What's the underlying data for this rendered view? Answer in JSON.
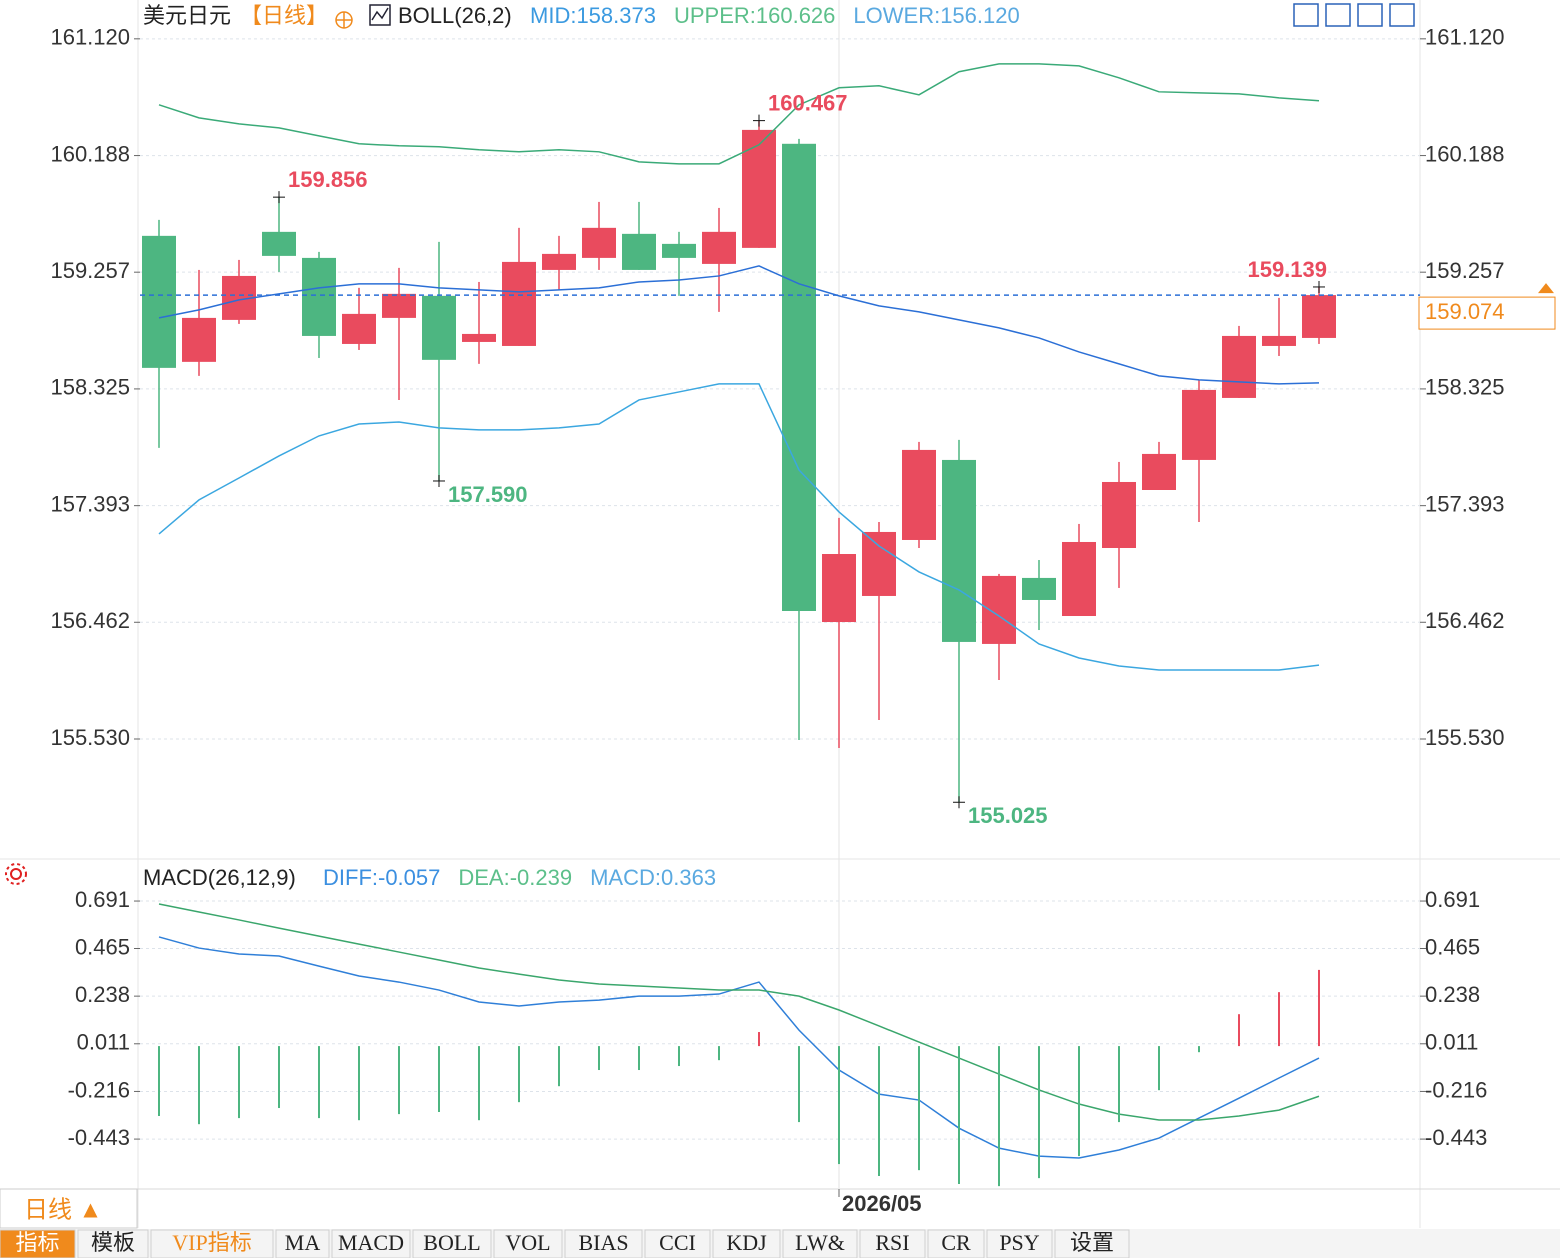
{
  "header": {
    "symbol": "美元日元",
    "period": "【日线】",
    "indicator": "BOLL(26,2)"
  },
  "chart_data": [
    {
      "type": "candlestick",
      "categories": [
        null,
        null,
        null,
        null,
        null,
        null,
        null,
        null,
        null,
        null,
        null,
        null,
        null,
        null,
        null,
        null,
        null,
        "2026/05",
        null,
        null,
        null,
        null,
        null,
        null,
        null,
        null,
        null,
        null,
        null,
        null
      ],
      "open": [
        159.547,
        158.541,
        158.876,
        159.579,
        159.371,
        158.684,
        158.892,
        159.068,
        158.7,
        158.668,
        159.275,
        159.371,
        159.563,
        159.483,
        159.323,
        159.451,
        160.282,
        156.464,
        156.672,
        157.119,
        157.758,
        156.289,
        156.816,
        156.512,
        157.055,
        157.518,
        157.758,
        158.253,
        158.668,
        158.732
      ],
      "high": [
        159.675,
        159.275,
        159.355,
        159.856,
        159.419,
        159.132,
        159.291,
        159.499,
        159.179,
        159.611,
        159.547,
        159.818,
        159.818,
        159.579,
        159.77,
        160.467,
        160.321,
        157.295,
        157.263,
        157.902,
        157.918,
        156.848,
        156.959,
        157.247,
        157.742,
        157.902,
        158.397,
        158.828,
        159.052,
        159.139
      ],
      "low": [
        157.854,
        158.429,
        158.844,
        159.259,
        158.572,
        158.636,
        158.237,
        157.59,
        158.525,
        158.668,
        159.116,
        159.275,
        159.275,
        159.068,
        158.94,
        159.451,
        155.522,
        155.458,
        155.682,
        157.055,
        155.025,
        156.001,
        156.4,
        156.512,
        156.736,
        157.518,
        157.263,
        158.253,
        158.588,
        158.684
      ],
      "close": [
        158.493,
        158.892,
        159.227,
        159.387,
        158.748,
        158.924,
        159.084,
        158.557,
        158.764,
        159.339,
        159.403,
        159.611,
        159.275,
        159.371,
        159.579,
        160.393,
        156.552,
        157.007,
        157.183,
        157.838,
        156.305,
        156.832,
        156.64,
        157.103,
        157.582,
        157.806,
        158.317,
        158.748,
        158.748,
        159.074
      ],
      "up_color": "#e94b5e",
      "down_color": "#4db681",
      "series": [
        {
          "legend": "MID:158.373",
          "color": "#2b6fd6",
          "text_color": "#3b9ae0",
          "values": [
            158.892,
            158.956,
            159.036,
            159.084,
            159.132,
            159.164,
            159.164,
            159.132,
            159.116,
            159.1,
            159.116,
            159.132,
            159.179,
            159.195,
            159.227,
            159.307,
            159.164,
            159.068,
            158.988,
            158.94,
            158.876,
            158.812,
            158.732,
            158.62,
            158.525,
            158.429,
            158.397,
            158.381,
            158.365,
            158.373
          ]
        },
        {
          "legend": "UPPER:160.626",
          "color": "#3aaa78",
          "text_color": "#5cbf8a",
          "values": [
            160.593,
            160.489,
            160.441,
            160.409,
            160.345,
            160.282,
            160.266,
            160.258,
            160.234,
            160.218,
            160.234,
            160.218,
            160.138,
            160.122,
            160.122,
            160.274,
            160.593,
            160.729,
            160.745,
            160.673,
            160.857,
            160.92,
            160.92,
            160.904,
            160.809,
            160.697,
            160.689,
            160.681,
            160.649,
            160.626
          ]
        },
        {
          "legend": "LOWER:156.120",
          "color": "#3ba7e0",
          "text_color": "#5aa9e0",
          "values": [
            157.167,
            157.439,
            157.614,
            157.79,
            157.95,
            158.045,
            158.061,
            158.014,
            157.998,
            157.998,
            158.014,
            158.045,
            158.237,
            158.301,
            158.365,
            158.365,
            157.678,
            157.343,
            157.071,
            156.864,
            156.72,
            156.512,
            156.289,
            156.177,
            156.113,
            156.081,
            156.081,
            156.081,
            156.081,
            156.12
          ]
        }
      ],
      "ylim": [
        154.58,
        161.43
      ],
      "yticks": [
        {
          "value": 161.12,
          "label": "161.120"
        },
        160.188,
        159.257,
        158.325,
        157.393,
        156.462,
        {
          "value": 155.53,
          "label": "155.530"
        }
      ],
      "current_price": 159.074,
      "annotations": [
        {
          "index": 3,
          "kind": "high",
          "value": 159.856
        },
        {
          "index": 15,
          "kind": "high",
          "value": 160.467
        },
        {
          "index": 7,
          "kind": "low",
          "value": 157.59,
          "label": "157.590"
        },
        {
          "index": 20,
          "kind": "low",
          "value": 155.025
        },
        {
          "index": 29,
          "kind": "high",
          "value": 159.139
        }
      ],
      "grid": true
    },
    {
      "type": "macd",
      "title": "MACD(26,12,9)",
      "series": [
        {
          "type": "line",
          "legend": "DIFF:-0.057",
          "color": "#2f7fd8",
          "text_color": "#3b8fe0",
          "values": [
            0.52,
            0.467,
            0.439,
            0.429,
            0.381,
            0.334,
            0.305,
            0.267,
            0.21,
            0.191,
            0.21,
            0.219,
            0.238,
            0.238,
            0.248,
            0.305,
            0.076,
            -0.114,
            -0.229,
            -0.257,
            -0.391,
            -0.486,
            -0.524,
            -0.533,
            -0.495,
            -0.438,
            -0.343,
            -0.248,
            -0.152,
            -0.057
          ]
        },
        {
          "type": "line",
          "legend": "DEA:-0.239",
          "color": "#3aa66c",
          "text_color": "#5cbf8a",
          "values": [
            0.677,
            0.639,
            0.601,
            0.562,
            0.524,
            0.486,
            0.448,
            0.41,
            0.372,
            0.343,
            0.315,
            0.296,
            0.286,
            0.277,
            0.267,
            0.267,
            0.238,
            0.172,
            0.096,
            0.019,
            -0.057,
            -0.133,
            -0.209,
            -0.276,
            -0.324,
            -0.352,
            -0.352,
            -0.333,
            -0.305,
            -0.239
          ]
        },
        {
          "type": "bar",
          "legend": "MACD:0.363",
          "text_color": "#5aa9e0",
          "up_color": "#e94b5e",
          "down_color": "#4db681",
          "values": [
            -0.333,
            -0.372,
            -0.343,
            -0.295,
            -0.343,
            -0.353,
            -0.324,
            -0.314,
            -0.353,
            -0.267,
            -0.191,
            -0.114,
            -0.114,
            -0.095,
            -0.067,
            0.067,
            -0.362,
            -0.562,
            -0.619,
            -0.591,
            -0.657,
            -0.667,
            -0.629,
            -0.524,
            -0.362,
            -0.21,
            -0.029,
            0.152,
            0.257,
            0.363
          ]
        }
      ],
      "ylim": [
        -0.676,
        0.877
      ],
      "yticks": [
        0.691,
        0.465,
        0.238,
        0.011,
        -0.216,
        -0.443
      ],
      "grid": true
    }
  ],
  "footer": {
    "period": "日线 ▲",
    "tabs": [
      "指标",
      "模板",
      "VIP指标",
      "MA",
      "MACD",
      "BOLL",
      "VOL",
      "BIAS",
      "CCI",
      "KDJ",
      "LW&",
      "RSI",
      "CR",
      "PSY",
      "设置"
    ]
  }
}
